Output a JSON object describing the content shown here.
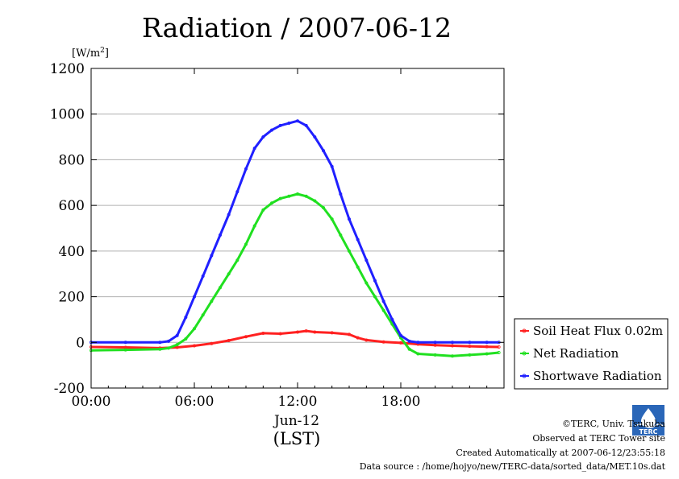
{
  "chart_data": {
    "type": "line",
    "title": "Radiation / 2007-06-12",
    "ylabel": "[W/m",
    "ylabel_sup": "2",
    "ylabel_end": "]",
    "xlabel_date": "Jun-12",
    "xlabel": "(LST)",
    "ylim": [
      -200,
      1200
    ],
    "xlim": [
      0,
      24
    ],
    "yticks": [
      1200,
      1000,
      800,
      600,
      400,
      200,
      0,
      -200
    ],
    "xticks": [
      {
        "value": 0,
        "label": "00:00"
      },
      {
        "value": 6,
        "label": "06:00"
      },
      {
        "value": 12,
        "label": "12:00"
      },
      {
        "value": 18,
        "label": "18:00"
      }
    ],
    "grid": true,
    "legend_position": "right",
    "series": [
      {
        "name": "Soil Heat Flux 0.02m",
        "color": "#ff2020",
        "x": [
          0,
          2,
          4,
          5,
          6,
          7,
          8,
          9,
          10,
          11,
          12,
          12.5,
          13,
          14,
          15,
          15.5,
          16,
          17,
          18,
          19,
          20,
          21,
          22,
          23,
          23.7
        ],
        "y": [
          -20,
          -22,
          -25,
          -22,
          -15,
          -5,
          8,
          25,
          40,
          38,
          45,
          50,
          45,
          42,
          35,
          20,
          10,
          2,
          -2,
          -8,
          -12,
          -15,
          -17,
          -19,
          -20
        ]
      },
      {
        "name": "Net Radiation",
        "color": "#20e020",
        "x": [
          0,
          2,
          4,
          4.5,
          5,
          5.5,
          6,
          6.5,
          7,
          7.5,
          8,
          8.5,
          9,
          9.5,
          10,
          10.5,
          11,
          11.5,
          12,
          12.5,
          13,
          13.5,
          14,
          14.5,
          15,
          15.5,
          16,
          16.5,
          17,
          17.5,
          18,
          18.5,
          19,
          20,
          21,
          22,
          23,
          23.7
        ],
        "y": [
          -35,
          -33,
          -30,
          -25,
          -10,
          15,
          60,
          120,
          180,
          240,
          300,
          360,
          430,
          510,
          580,
          610,
          630,
          640,
          650,
          640,
          620,
          590,
          540,
          470,
          400,
          330,
          260,
          200,
          140,
          80,
          20,
          -30,
          -50,
          -55,
          -60,
          -55,
          -50,
          -45
        ]
      },
      {
        "name": "Shortwave Radiation",
        "color": "#2020ff",
        "x": [
          0,
          2,
          4,
          4.5,
          5,
          5.5,
          6,
          6.5,
          7,
          7.5,
          8,
          8.5,
          9,
          9.5,
          10,
          10.5,
          11,
          11.5,
          12,
          12.5,
          13,
          13.5,
          14,
          14.5,
          15,
          15.5,
          16,
          16.5,
          17,
          17.5,
          18,
          18.5,
          19,
          20,
          21,
          22,
          23,
          23.7
        ],
        "y": [
          0,
          0,
          0,
          5,
          30,
          110,
          200,
          290,
          380,
          470,
          560,
          660,
          760,
          850,
          900,
          930,
          950,
          960,
          970,
          950,
          900,
          840,
          770,
          650,
          540,
          450,
          360,
          270,
          180,
          100,
          30,
          5,
          0,
          0,
          0,
          0,
          0,
          0
        ]
      }
    ]
  },
  "footer": {
    "copyright": "©TERC, Univ. Tsukuba",
    "observed": "Observed at TERC Tower site",
    "created": "Created Automatically at 2007-06-12/23:55:18",
    "source": "Data source : /home/hojyo/new/TERC-data/sorted_data/MET.10s.dat"
  },
  "logo": {
    "text": "TERC",
    "color": "#2a66b8",
    "icon": "terc-logo"
  }
}
